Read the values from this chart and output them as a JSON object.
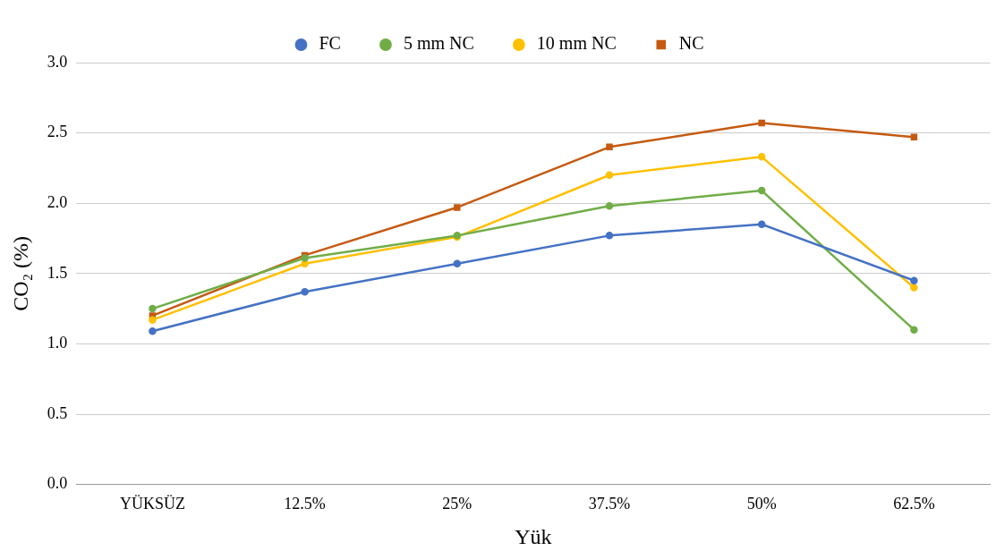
{
  "chart_data": {
    "type": "line",
    "xlabel": "Yük",
    "ylabel": "CO₂ (%)",
    "categories": [
      "YÜKSÜZ",
      "12.5%",
      "25%",
      "37.5%",
      "50%",
      "62.5%"
    ],
    "series": [
      {
        "name": "FC",
        "color": "#4472c4",
        "marker": "circle",
        "values": [
          1.09,
          1.37,
          1.57,
          1.77,
          1.85,
          1.45
        ]
      },
      {
        "name": "5 mm NC",
        "color": "#70ad47",
        "marker": "circle",
        "values": [
          1.25,
          1.61,
          1.77,
          1.98,
          2.09,
          1.1
        ]
      },
      {
        "name": "10 mm NC",
        "color": "#ffc000",
        "marker": "circle",
        "values": [
          1.17,
          1.57,
          1.76,
          2.2,
          2.33,
          1.4
        ]
      },
      {
        "name": "NC",
        "color": "#c55a11",
        "marker": "square",
        "values": [
          1.2,
          1.63,
          1.97,
          2.4,
          2.57,
          2.47
        ]
      }
    ],
    "ylim": [
      0,
      3
    ],
    "yticks": [
      {
        "value": 0,
        "label": "0.0"
      },
      {
        "value": 0.5,
        "label": "0.5"
      },
      {
        "value": 1,
        "label": "1.0"
      },
      {
        "value": 1.5,
        "label": "1.5"
      },
      {
        "value": 2,
        "label": "2.0"
      },
      {
        "value": 2.5,
        "label": "2.5"
      },
      {
        "value": 3,
        "label": "3.0"
      }
    ],
    "grid": "y",
    "legend": "top",
    "line_style": "solid"
  }
}
